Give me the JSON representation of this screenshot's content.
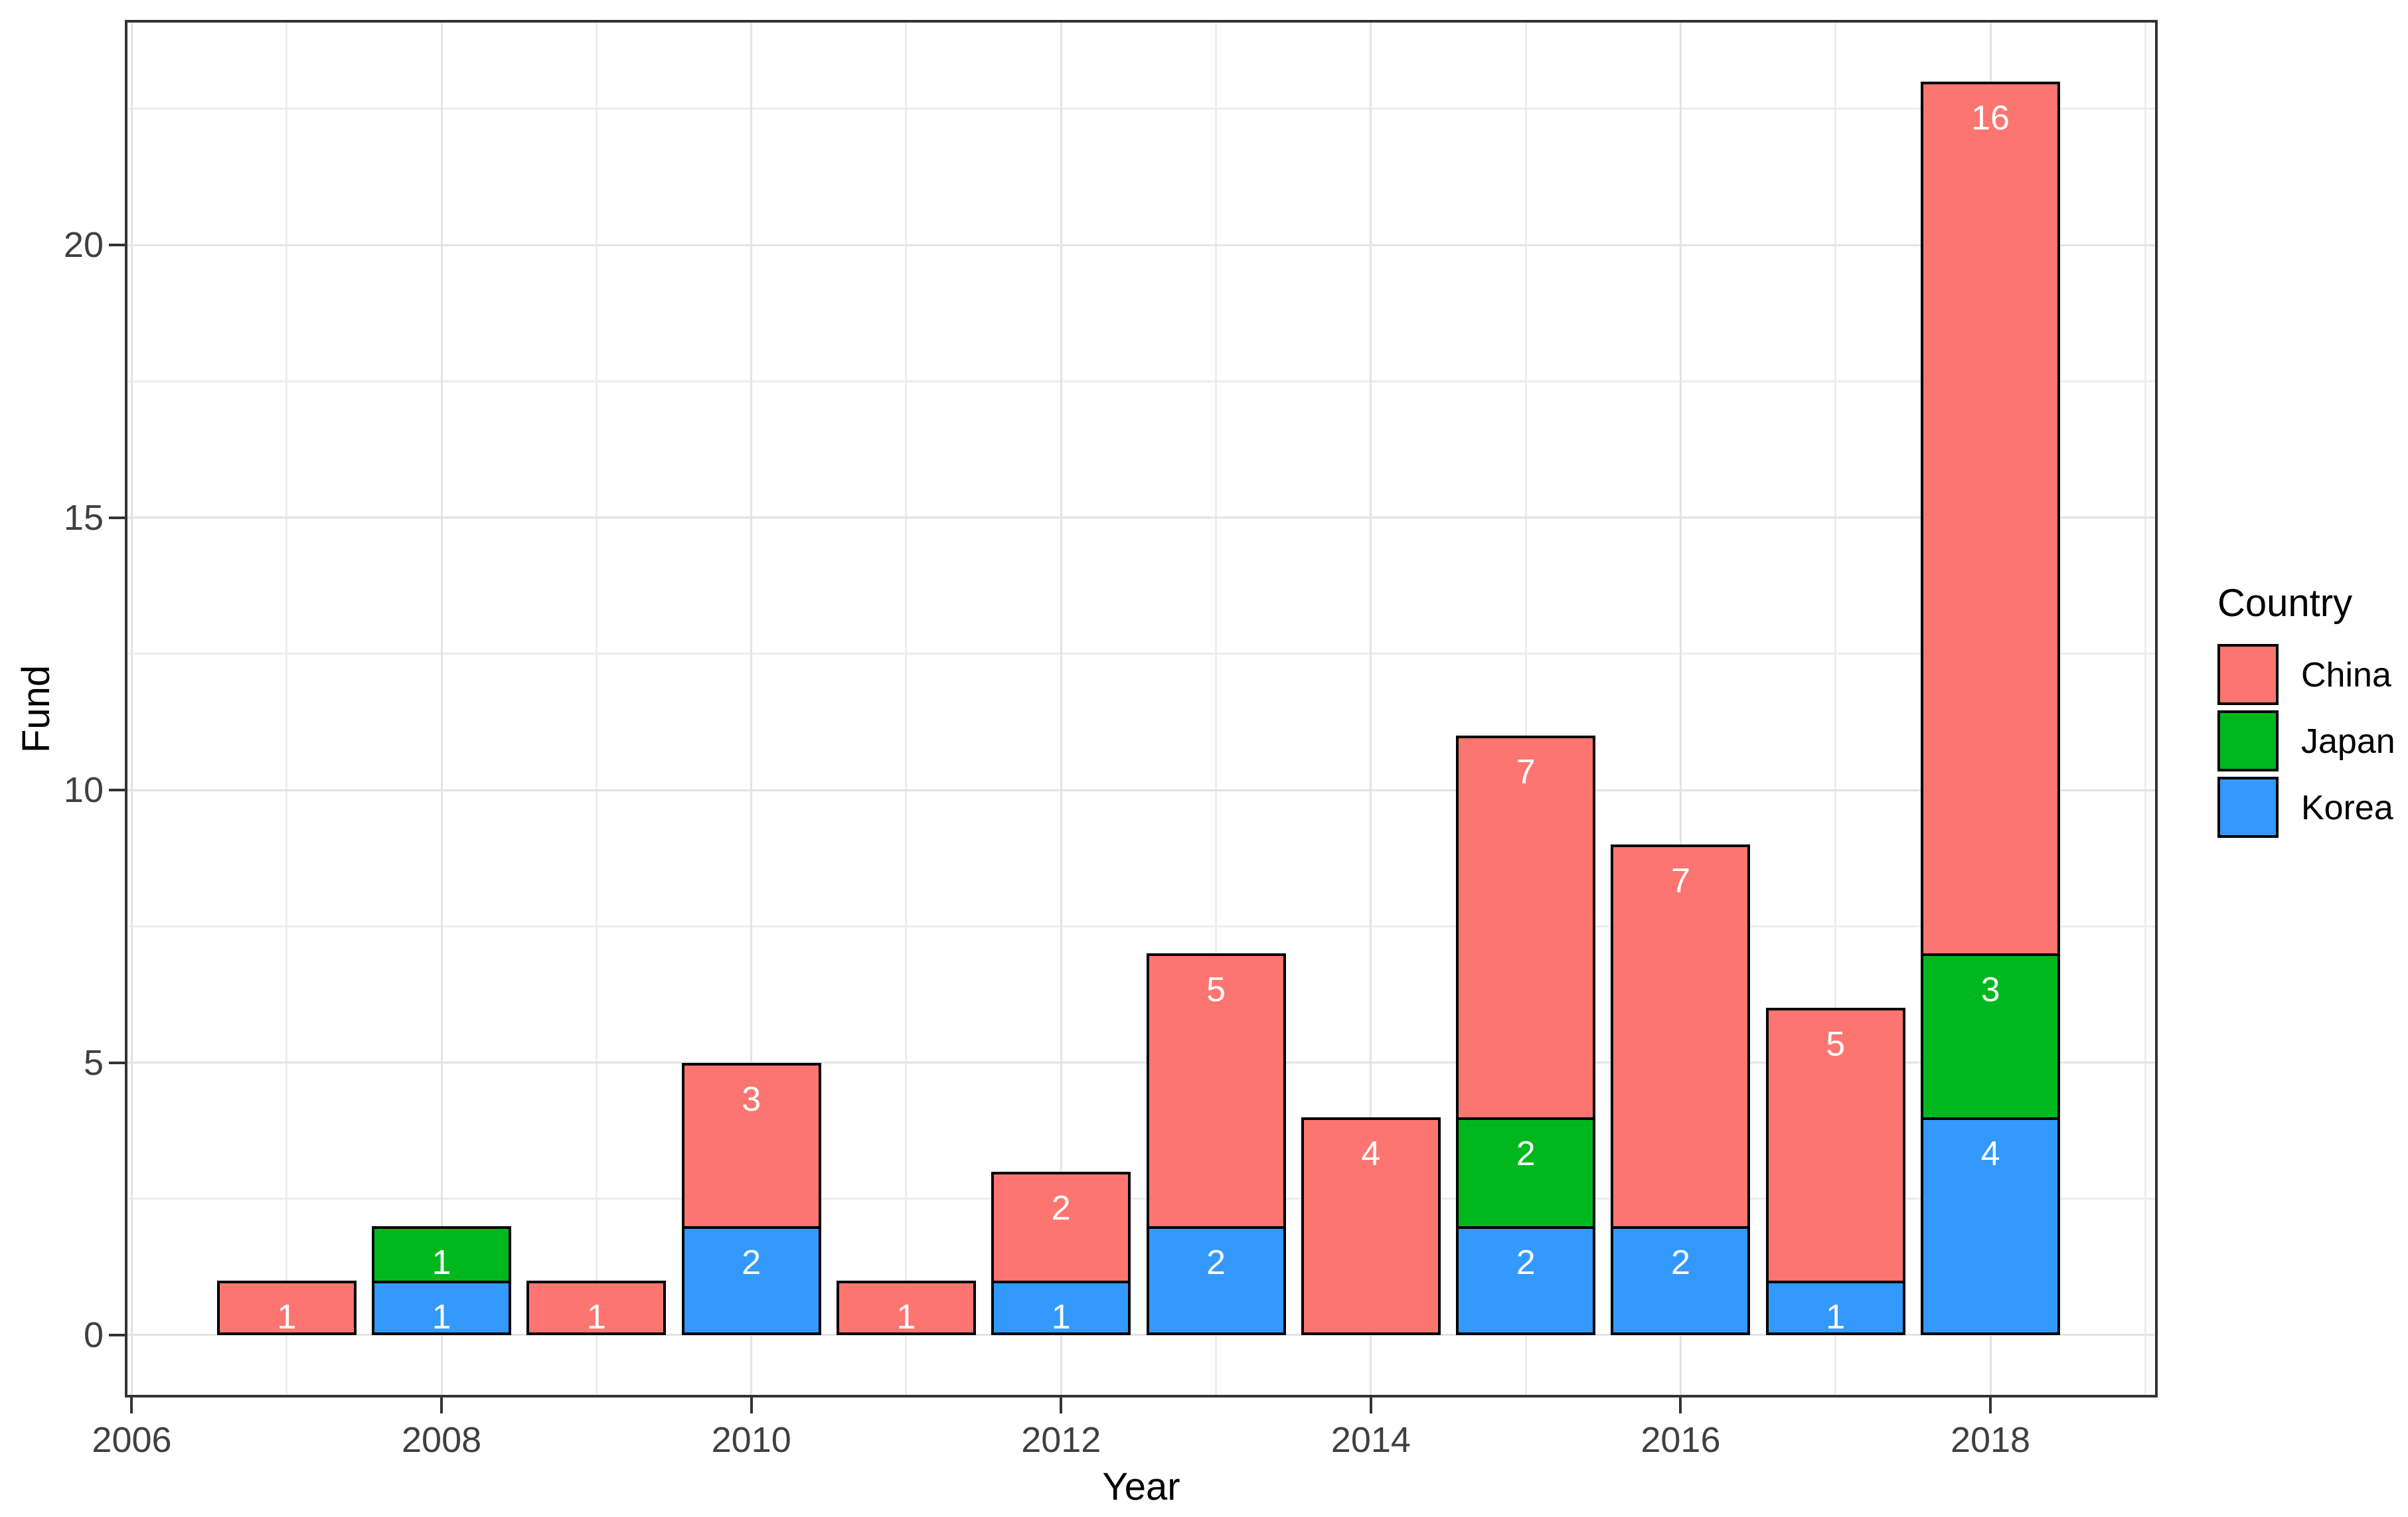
{
  "axes": {
    "x_label": "Year",
    "y_label": "Fund",
    "x_tick_labels": [
      "2006",
      "2008",
      "2010",
      "2012",
      "2014",
      "2016",
      "2018"
    ],
    "y_tick_labels": [
      "0",
      "5",
      "10",
      "15",
      "20"
    ]
  },
  "legend": {
    "title": "Country",
    "items": [
      {
        "label": "China",
        "color": "#FC7571"
      },
      {
        "label": "Japan",
        "color": "#00B81E"
      },
      {
        "label": "Korea",
        "color": "#3399FC"
      }
    ]
  },
  "colors": {
    "panel_border": "#333333",
    "tick": "#333333",
    "tick_label": "#404040",
    "axis_title": "#000000",
    "bar_outline": "#000000",
    "bar_value_label": "#FFFFFF",
    "grid_major": "#E3E3E3",
    "grid_minor": "#EDEDED"
  },
  "chart_data": {
    "type": "bar",
    "stacked": true,
    "title": "",
    "xlabel": "Year",
    "ylabel": "Fund",
    "x": [
      2007,
      2008,
      2009,
      2010,
      2011,
      2012,
      2013,
      2014,
      2015,
      2016,
      2017,
      2018
    ],
    "series": [
      {
        "name": "Korea",
        "color": "#3399FC",
        "values": [
          0,
          1,
          0,
          2,
          0,
          1,
          2,
          0,
          2,
          2,
          1,
          4
        ]
      },
      {
        "name": "Japan",
        "color": "#00B81E",
        "values": [
          0,
          1,
          0,
          0,
          0,
          0,
          0,
          0,
          2,
          0,
          0,
          3
        ]
      },
      {
        "name": "China",
        "color": "#FC7571",
        "values": [
          1,
          0,
          1,
          3,
          1,
          2,
          5,
          4,
          7,
          7,
          5,
          16
        ]
      }
    ],
    "totals": [
      1,
      2,
      1,
      5,
      1,
      3,
      7,
      4,
      11,
      9,
      6,
      23
    ],
    "segment_labels_shown": true,
    "bar_width": 0.9,
    "x_ticks": [
      2006,
      2008,
      2010,
      2012,
      2014,
      2016,
      2018
    ],
    "x_minor_breaks": [
      2007,
      2009,
      2011,
      2013,
      2015,
      2017,
      2019
    ],
    "y_ticks": [
      0,
      5,
      10,
      15,
      20
    ],
    "y_minor_breaks": [
      2.5,
      7.5,
      12.5,
      17.5,
      22.5
    ],
    "xlim": [
      2005.955,
      2019.08
    ],
    "ylim": [
      -1.145,
      24.13
    ],
    "grid": "major+minor",
    "legend_position": "right"
  }
}
